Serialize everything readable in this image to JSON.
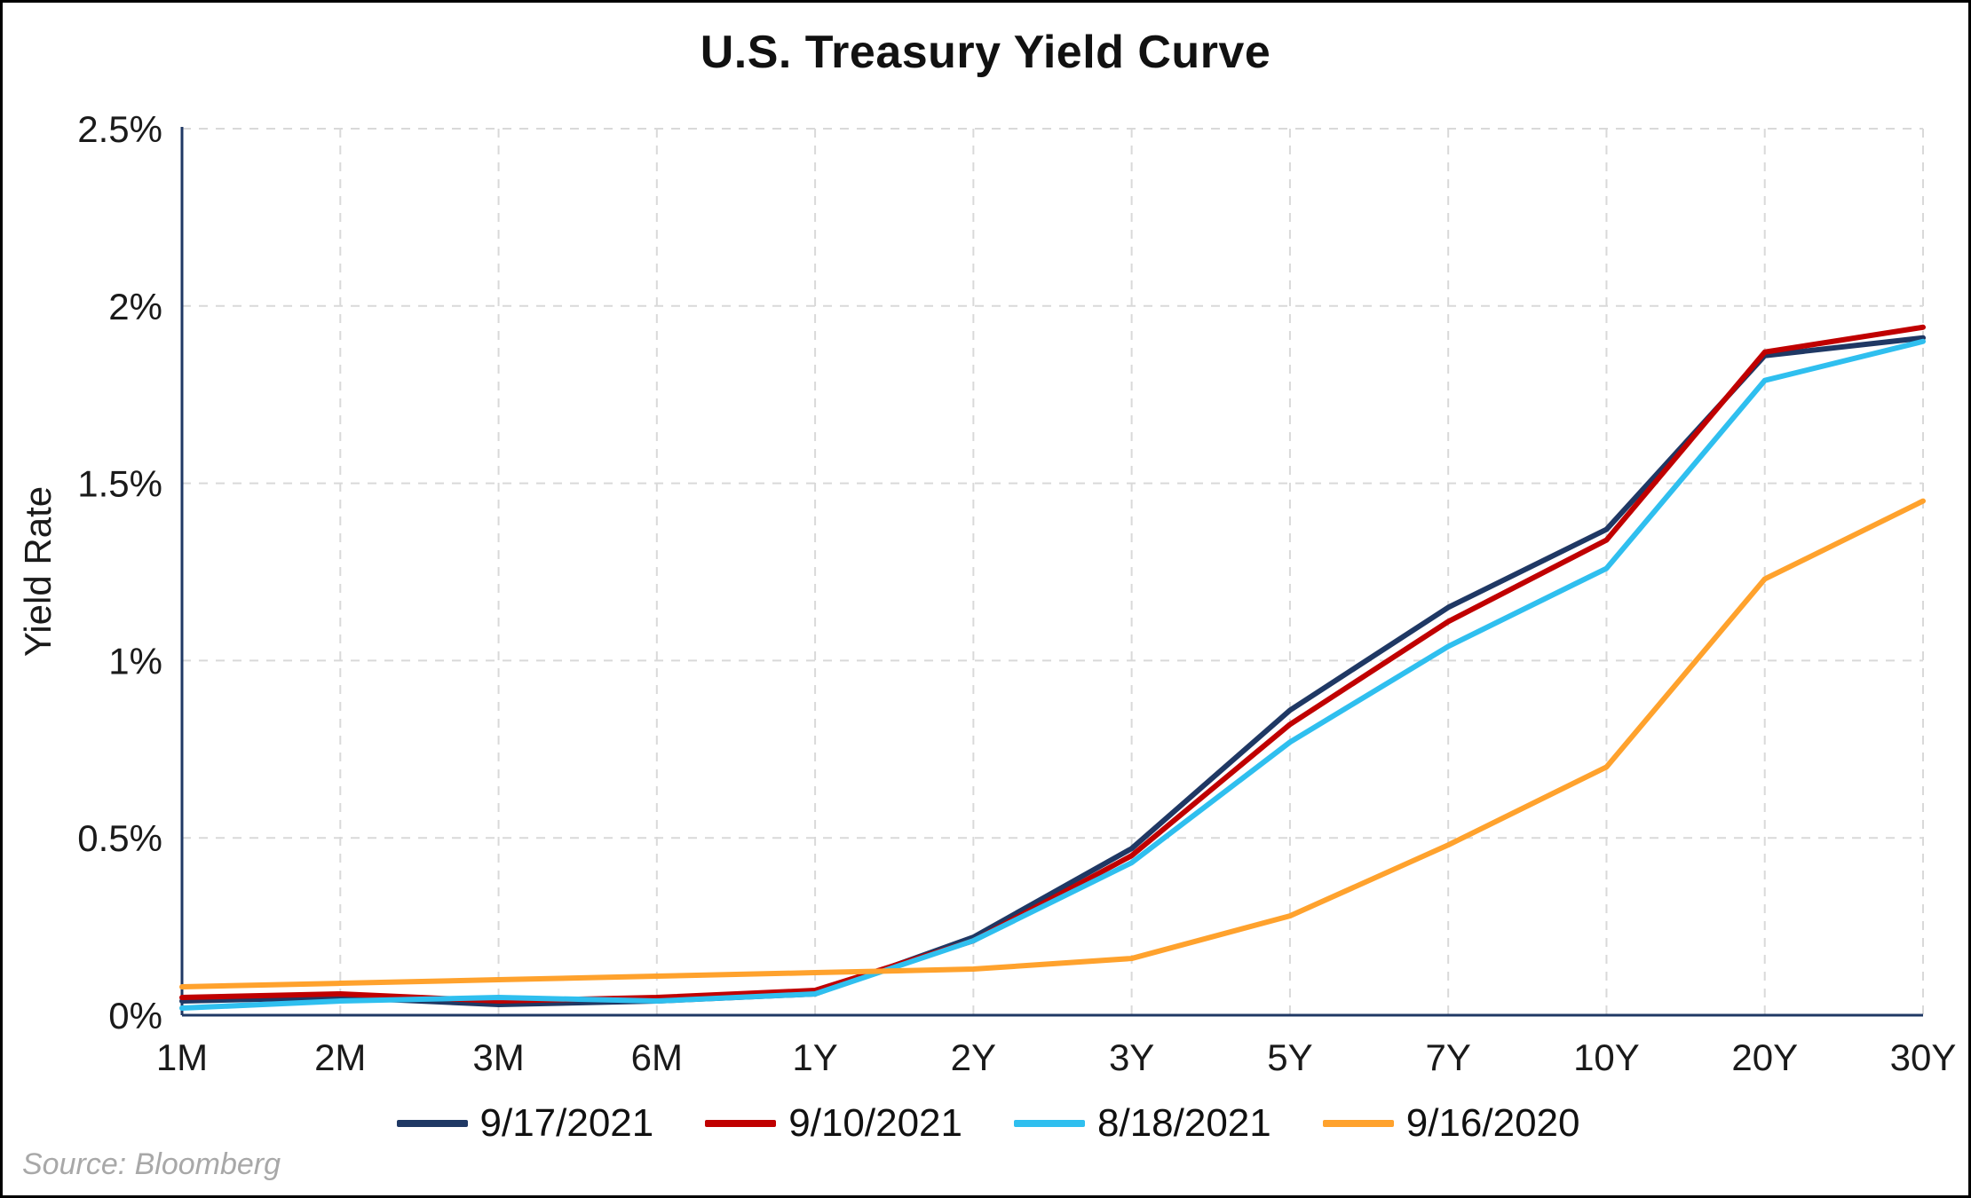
{
  "chart_data": {
    "type": "line",
    "title": "U.S. Treasury Yield Curve",
    "xlabel": "",
    "ylabel": "Yield Rate",
    "categories": [
      "1M",
      "2M",
      "3M",
      "6M",
      "1Y",
      "2Y",
      "3Y",
      "5Y",
      "7Y",
      "10Y",
      "20Y",
      "30Y"
    ],
    "ylim": [
      0,
      2.5
    ],
    "yticks": [
      {
        "value": 0.0,
        "label": "0%"
      },
      {
        "value": 0.5,
        "label": "0.5%"
      },
      {
        "value": 1.0,
        "label": "1%"
      },
      {
        "value": 1.5,
        "label": "1.5%"
      },
      {
        "value": 2.0,
        "label": "2%"
      },
      {
        "value": 2.5,
        "label": "2.5%"
      }
    ],
    "grid": "dashed gray, horizontal and vertical",
    "legend_position": "bottom",
    "series": [
      {
        "name": "9/17/2021",
        "color": "#1F3864",
        "values": [
          0.04,
          0.05,
          0.03,
          0.04,
          0.06,
          0.22,
          0.47,
          0.86,
          1.15,
          1.37,
          1.86,
          1.91
        ]
      },
      {
        "name": "9/10/2021",
        "color": "#C00000",
        "values": [
          0.05,
          0.06,
          0.04,
          0.05,
          0.07,
          0.21,
          0.45,
          0.82,
          1.11,
          1.34,
          1.87,
          1.94
        ]
      },
      {
        "name": "8/18/2021",
        "color": "#2FBFEF",
        "values": [
          0.02,
          0.04,
          0.05,
          0.04,
          0.06,
          0.21,
          0.43,
          0.77,
          1.04,
          1.26,
          1.79,
          1.9
        ]
      },
      {
        "name": "9/16/2020",
        "color": "#FFA22D",
        "values": [
          0.08,
          0.09,
          0.1,
          0.11,
          0.12,
          0.13,
          0.16,
          0.28,
          0.48,
          0.7,
          1.23,
          1.45
        ]
      }
    ]
  },
  "source_note": "Source: Bloomberg"
}
